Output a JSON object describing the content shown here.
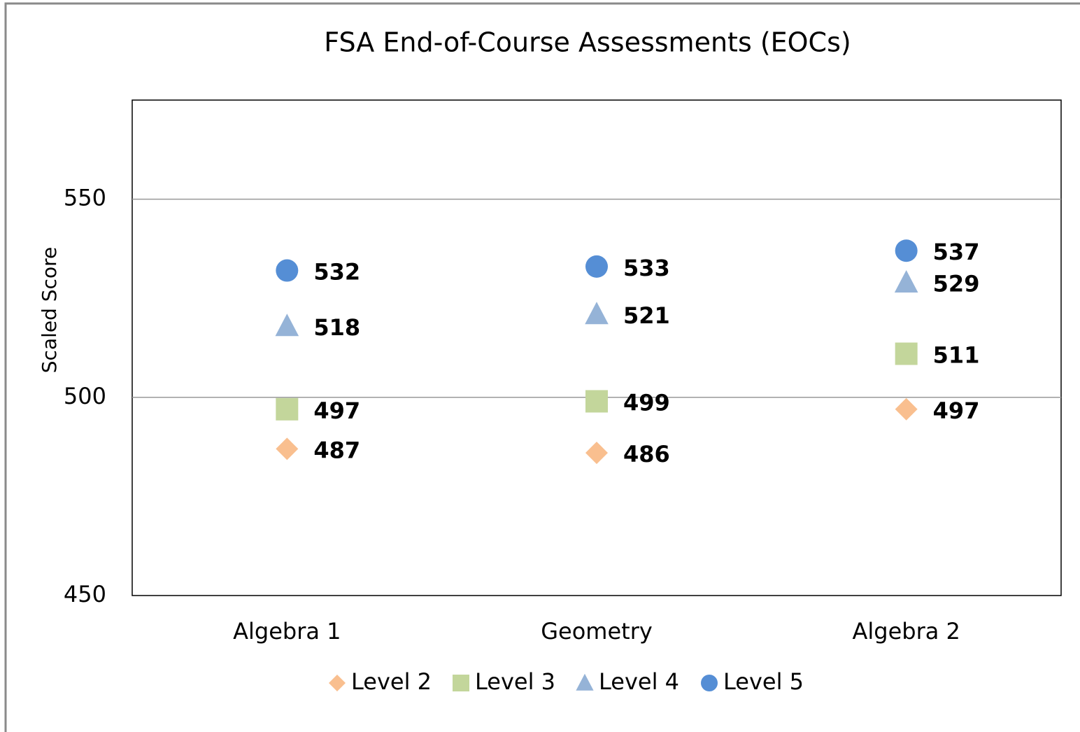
{
  "chart_data": {
    "type": "scatter",
    "title": "FSA End-of-Course Assessments (EOCs)",
    "y_label": "Scaled Score",
    "categories": [
      "Algebra 1",
      "Geometry",
      "Algebra 2"
    ],
    "series": [
      {
        "name": "Level 2",
        "color": "#f9bf8f",
        "marker": "diamond",
        "values": [
          487,
          486,
          497
        ]
      },
      {
        "name": "Level 3",
        "color": "#c3d69b",
        "marker": "square",
        "values": [
          497,
          499,
          511
        ]
      },
      {
        "name": "Level 4",
        "color": "#95b3d7",
        "marker": "triangle",
        "values": [
          518,
          521,
          529
        ]
      },
      {
        "name": "Level 5",
        "color": "#558ed5",
        "marker": "circle",
        "values": [
          532,
          533,
          537
        ]
      }
    ],
    "ylim": [
      450,
      575
    ],
    "yticks": [
      450,
      500,
      550
    ],
    "grid": true,
    "legend": "bottom"
  }
}
